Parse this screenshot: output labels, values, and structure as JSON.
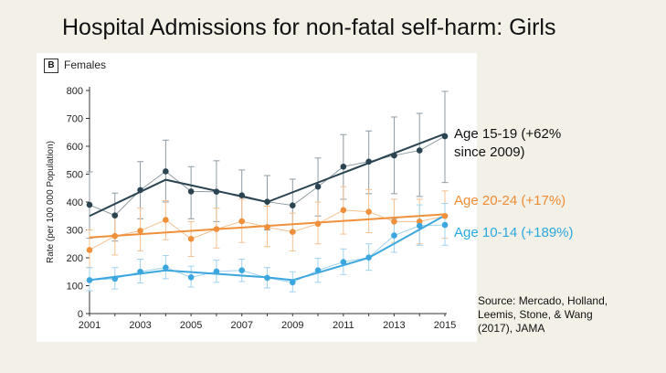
{
  "slide_title": "Hospital Admissions for non-fatal self-harm: Girls",
  "panel": {
    "letter": "B",
    "label": "Females"
  },
  "annotations": {
    "age_15_19_line1": "Age 15-19 (+62%",
    "age_15_19_line2": "since 2009)",
    "age_20_24": "Age 20-24 (+17%)",
    "age_10_14": "Age 10-14 (+189%)"
  },
  "source": {
    "line1": "Source: Mercado, Holland,",
    "line2": "Leemis, Stone, & Wang",
    "line3": "(2017), JAMA"
  },
  "colors": {
    "age_15_19": "#2b4452",
    "age_20_24": "#f0903a",
    "age_10_14": "#3ba7de"
  },
  "chart_data": {
    "type": "line",
    "title": "",
    "xlabel": "",
    "ylabel": "Rate (per 100 000 Population)",
    "x": [
      2001,
      2002,
      2003,
      2004,
      2005,
      2006,
      2007,
      2008,
      2009,
      2010,
      2011,
      2012,
      2013,
      2014,
      2015
    ],
    "xticks": [
      "2001",
      "2003",
      "2005",
      "2007",
      "2009",
      "2011",
      "2013",
      "2015"
    ],
    "yticks": [
      "0",
      "100",
      "200",
      "300",
      "400",
      "500",
      "600",
      "700",
      "800"
    ],
    "xlim": [
      2001,
      2015
    ],
    "ylim": [
      0,
      800
    ],
    "grid": false,
    "series": [
      {
        "group": "age_15_19",
        "values": [
          390,
          352,
          443,
          510,
          438,
          437,
          424,
          401,
          388,
          455,
          527,
          545,
          567,
          585,
          636
        ],
        "error_low": [
          270,
          260,
          340,
          400,
          340,
          330,
          330,
          300,
          290,
          350,
          410,
          430,
          430,
          420,
          470
        ],
        "error_high": [
          508,
          432,
          545,
          622,
          527,
          548,
          515,
          495,
          482,
          558,
          642,
          655,
          705,
          718,
          797
        ],
        "trend_x": [
          2001,
          2004,
          2008,
          2015
        ],
        "trend_y": [
          350,
          480,
          400,
          645
        ]
      },
      {
        "group": "age_20_24",
        "values": [
          228,
          278,
          297,
          336,
          268,
          303,
          331,
          310,
          293,
          322,
          371,
          365,
          330,
          330,
          350
        ],
        "error_low": [
          165,
          210,
          225,
          265,
          205,
          235,
          255,
          240,
          225,
          250,
          285,
          290,
          255,
          250,
          270
        ],
        "error_high": [
          300,
          350,
          378,
          405,
          330,
          378,
          410,
          385,
          360,
          400,
          455,
          445,
          410,
          410,
          440
        ],
        "trend_x": [
          2001,
          2015
        ],
        "trend_y": [
          273,
          356
        ]
      },
      {
        "group": "age_10_14",
        "values": [
          120,
          125,
          150,
          165,
          130,
          151,
          155,
          128,
          112,
          155,
          185,
          201,
          280,
          315,
          318
        ],
        "error_low": [
          82,
          88,
          110,
          125,
          95,
          112,
          115,
          92,
          78,
          112,
          140,
          155,
          220,
          245,
          245
        ],
        "error_high": [
          165,
          165,
          195,
          208,
          170,
          192,
          195,
          165,
          150,
          198,
          232,
          250,
          340,
          390,
          395
        ],
        "trend_x": [
          2001,
          2004,
          2008,
          2009,
          2012,
          2015
        ],
        "trend_y": [
          120,
          155,
          130,
          120,
          200,
          352
        ]
      }
    ]
  }
}
